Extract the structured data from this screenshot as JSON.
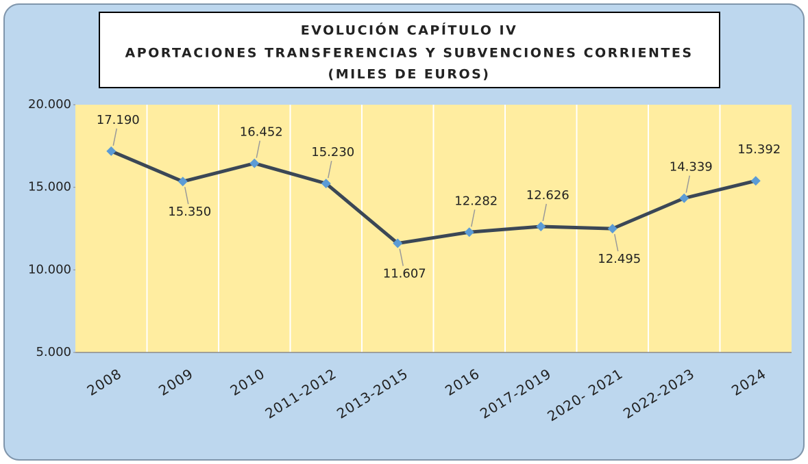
{
  "chart_data": {
    "type": "line",
    "title": [
      "EVOLUCIÓN CAPÍTULO IV",
      "APORTACIONES TRANSFERENCIAS Y SUBVENCIONES CORRIENTES",
      "(MILES DE EUROS)"
    ],
    "categories": [
      "2008",
      "2009",
      "2010",
      "2011-2012",
      "2013-2015",
      "2016",
      "2017-2019",
      "2020- 2021",
      "2022-2023",
      "2024"
    ],
    "series": [
      {
        "color": "#3b4756",
        "marker_color": "#5b9bd5",
        "values": [
          17190,
          15350,
          16452,
          15230,
          11607,
          12282,
          12626,
          12495,
          14339,
          15392
        ],
        "value_labels": [
          "17.190",
          "15.350",
          "16.452",
          "15.230",
          "11.607",
          "12.282",
          "12.626",
          "12.495",
          "14.339",
          "15.392"
        ]
      }
    ],
    "ylim": [
      5000,
      20000
    ],
    "yticks": [
      {
        "value": 5000,
        "label": "5.000"
      },
      {
        "value": 10000,
        "label": "10.000"
      },
      {
        "value": 15000,
        "label": "15.000"
      },
      {
        "value": 20000,
        "label": "20.000"
      }
    ],
    "grid": "x"
  }
}
